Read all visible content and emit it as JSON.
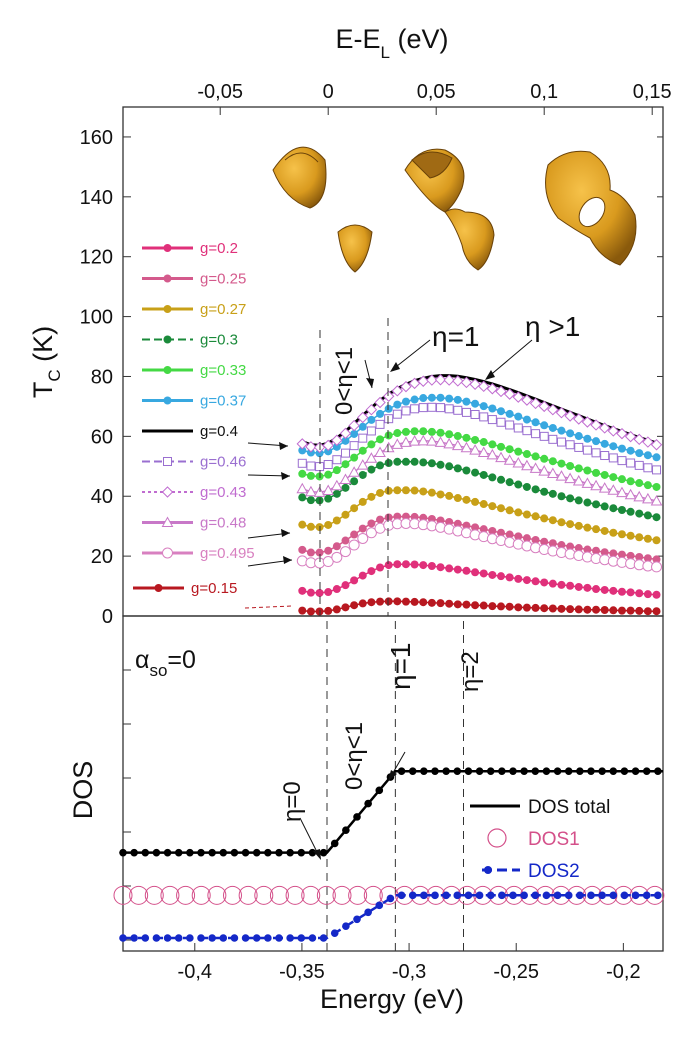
{
  "chart_data": [
    {
      "type": "line",
      "panel": "top",
      "title": "",
      "top_xlabel": "E-E",
      "top_xlabel_sub": "L",
      "top_xlabel_unit": " (eV)",
      "top_xlim": [
        -0.095,
        0.155
      ],
      "top_xticks": [
        -0.05,
        0,
        0.05,
        0.1,
        0.15
      ],
      "top_xtick_labels": [
        "-0,05",
        "0",
        "0,05",
        "0,1",
        "0,15"
      ],
      "ylabel": "T",
      "ylabel_sub": "C",
      "ylabel_unit": " (K)",
      "ylim": [
        0,
        170
      ],
      "yticks": [
        0,
        20,
        40,
        60,
        80,
        100,
        120,
        140,
        160
      ],
      "ytick_labels": [
        "0",
        "20",
        "40",
        "60",
        "80",
        "100",
        "120",
        "140",
        "160"
      ],
      "x": [
        -0.012,
        -0.008,
        -0.004,
        0.0,
        0.004,
        0.008,
        0.012,
        0.016,
        0.02,
        0.024,
        0.028,
        0.032,
        0.036,
        0.04,
        0.044,
        0.048,
        0.052,
        0.056,
        0.06,
        0.064,
        0.068,
        0.072,
        0.076,
        0.08,
        0.084,
        0.088,
        0.092,
        0.096,
        0.1,
        0.104,
        0.108,
        0.112,
        0.116,
        0.12,
        0.124,
        0.128,
        0.132,
        0.136,
        0.14,
        0.144,
        0.148,
        0.152
      ],
      "series": [
        {
          "name": "g=0.2",
          "color": "#e0307a",
          "style": "solid-dot",
          "values": [
            8.4,
            7.8,
            7.7,
            8,
            9,
            10.3,
            11.9,
            13.5,
            15,
            16.2,
            17,
            17.3,
            17.3,
            17.2,
            17,
            16.7,
            16.3,
            15.9,
            15.5,
            15.1,
            14.6,
            14.2,
            13.7,
            13.3,
            12.9,
            12.4,
            12,
            11.6,
            11.2,
            10.8,
            10.4,
            10.1,
            9.7,
            9.4,
            9,
            8.7,
            8.4,
            8.1,
            7.9,
            7.6,
            7.3,
            7.1
          ]
        },
        {
          "name": "g=0.25",
          "color": "#d45a8c",
          "style": "solid-dot",
          "values": [
            22.1,
            21.2,
            21.2,
            21.8,
            23.3,
            25.2,
            27.2,
            29.2,
            30.9,
            32.2,
            32.9,
            33.2,
            33.2,
            33.1,
            32.8,
            32.4,
            31.9,
            31.4,
            30.8,
            30.2,
            29.6,
            29,
            28.4,
            27.8,
            27.2,
            26.6,
            26,
            25.4,
            24.8,
            24.3,
            23.7,
            23.2,
            22.7,
            22.2,
            21.8,
            21.3,
            20.9,
            20.5,
            20.1,
            19.7,
            19.3,
            18.9
          ]
        },
        {
          "name": "g=0.27",
          "color": "#c8a018",
          "style": "solid-dot",
          "values": [
            30.5,
            29.8,
            29.7,
            30.4,
            31.9,
            33.8,
            36,
            38.1,
            39.8,
            41.1,
            41.8,
            42,
            42,
            41.9,
            41.6,
            41.2,
            40.6,
            40.1,
            39.4,
            38.8,
            38.1,
            37.4,
            36.7,
            36,
            35.3,
            34.6,
            33.9,
            33.3,
            32.6,
            32,
            31.3,
            30.7,
            30.1,
            29.5,
            29,
            28.4,
            27.8,
            27.3,
            26.8,
            26.3,
            25.8,
            25.3
          ]
        },
        {
          "name": "g=0.3",
          "color": "#1a8a3a",
          "style": "dashed-dot",
          "values": [
            39.6,
            38.7,
            38.6,
            39.2,
            40.8,
            42.8,
            45,
            47.1,
            48.9,
            50.3,
            51.1,
            51.5,
            51.5,
            51.5,
            51.3,
            51,
            50.5,
            50,
            49.3,
            48.6,
            47.9,
            47.1,
            46.3,
            45.5,
            44.7,
            43.9,
            43.1,
            42.3,
            41.5,
            40.8,
            40,
            39.3,
            38.6,
            37.9,
            37.3,
            36.6,
            36,
            35.4,
            34.8,
            34.2,
            33.6,
            33
          ]
        },
        {
          "name": "g=0.33",
          "color": "#44d944",
          "style": "solid-dot",
          "values": [
            47.5,
            46.8,
            46.6,
            47.2,
            48.7,
            50.7,
            52.9,
            55.2,
            57.3,
            59,
            60.3,
            61.1,
            61.5,
            61.7,
            61.7,
            61.5,
            61.2,
            60.7,
            60.1,
            59.5,
            58.8,
            58.1,
            57.3,
            56.5,
            55.7,
            54.9,
            54.1,
            53.3,
            52.5,
            51.7,
            50.9,
            50.1,
            49.3,
            48.6,
            47.8,
            47.1,
            46.4,
            45.7,
            45,
            44.4,
            43.7,
            43.1
          ]
        },
        {
          "name": "g=0.37",
          "color": "#38a8e0",
          "style": "solid-dot",
          "values": [
            55.3,
            54.6,
            54.4,
            55,
            56.5,
            58.5,
            60.8,
            63.2,
            65.5,
            67.5,
            69.2,
            70.6,
            71.6,
            72.3,
            72.8,
            72.9,
            72.9,
            72.6,
            72.2,
            71.6,
            70.9,
            70.1,
            69.3,
            68.4,
            67.5,
            66.6,
            65.6,
            64.7,
            63.7,
            62.8,
            61.9,
            61,
            60.1,
            59.2,
            58.4,
            57.5,
            56.7,
            55.9,
            55.2,
            54.4,
            53.7,
            53
          ]
        },
        {
          "name": "g=0.4",
          "color": "#000000",
          "style": "solid",
          "values": [
            58.2,
            57.2,
            57,
            57.7,
            59.4,
            61.7,
            64.3,
            67,
            69.6,
            72,
            74.1,
            75.9,
            77.4,
            78.6,
            79.4,
            80,
            80.3,
            80.3,
            80.1,
            79.6,
            79,
            78.3,
            77.5,
            76.6,
            75.6,
            74.6,
            73.5,
            72.4,
            71.3,
            70.2,
            69.1,
            68,
            66.9,
            65.8,
            64.7,
            63.6,
            62.6,
            61.6,
            60.6,
            59.6,
            58.7,
            57.8
          ]
        },
        {
          "name": "g=0.46",
          "color": "#9a6fd0",
          "style": "dashed-square",
          "values": [
            51,
            50.1,
            49.9,
            50.6,
            52.2,
            54.4,
            56.9,
            59.4,
            61.8,
            64,
            65.9,
            67.4,
            68.5,
            69.2,
            69.6,
            69.7,
            69.6,
            69.2,
            68.7,
            68,
            67.3,
            66.5,
            65.6,
            64.7,
            63.8,
            62.8,
            61.9,
            60.9,
            60,
            59,
            58.1,
            57.2,
            56.3,
            55.4,
            54.5,
            53.6,
            52.8,
            51.9,
            51.1,
            50.3,
            49.5,
            48.8
          ]
        },
        {
          "name": "g=0.43",
          "color": "#c06cd0",
          "style": "dotted-diamond",
          "values": [
            57.5,
            56.5,
            56.3,
            57,
            58.7,
            61,
            63.6,
            66.3,
            68.9,
            71.3,
            73.4,
            75.2,
            76.6,
            77.7,
            78.4,
            78.8,
            78.9,
            78.8,
            78.5,
            78,
            77.4,
            76.7,
            75.9,
            75,
            74.1,
            73.1,
            72.1,
            71,
            70,
            68.9,
            67.9,
            66.8,
            65.8,
            64.8,
            63.8,
            62.8,
            61.8,
            60.9,
            59.9,
            59,
            58.1,
            57.2
          ]
        },
        {
          "name": "g=0.48",
          "color": "#c878c8",
          "style": "solid-triangle",
          "values": [
            42.5,
            41.5,
            41.3,
            41.9,
            43.5,
            45.6,
            48,
            50.4,
            52.7,
            54.6,
            56.2,
            57.3,
            58,
            58.4,
            58.5,
            58.4,
            58,
            57.5,
            56.9,
            56.2,
            55.4,
            54.6,
            53.8,
            52.9,
            52,
            51.1,
            50.2,
            49.3,
            48.4,
            47.6,
            46.7,
            45.9,
            45.1,
            44.3,
            43.5,
            42.7,
            42,
            41.2,
            40.5,
            39.8,
            39.1,
            38.4
          ]
        },
        {
          "name": "g=0.495",
          "color": "#d880c0",
          "style": "solid-circle",
          "values": [
            18.4,
            17.8,
            17.7,
            18.2,
            19.6,
            21.5,
            23.7,
            25.9,
            27.8,
            29.3,
            30.3,
            30.8,
            30.9,
            30.8,
            30.5,
            30.1,
            29.6,
            29,
            28.4,
            27.8,
            27.1,
            26.5,
            25.8,
            25.2,
            24.6,
            24,
            23.4,
            22.8,
            22.2,
            21.7,
            21.2,
            20.7,
            20.2,
            19.7,
            19.2,
            18.8,
            18.3,
            17.9,
            17.5,
            17.1,
            16.7,
            16.4
          ]
        },
        {
          "name": "g=0.15",
          "color": "#b81820",
          "style": "solid-dot",
          "values": [
            1.8,
            1.5,
            1.5,
            1.7,
            2.2,
            2.9,
            3.6,
            4.2,
            4.6,
            4.8,
            4.9,
            4.9,
            4.8,
            4.7,
            4.6,
            4.4,
            4.3,
            4.1,
            3.9,
            3.8,
            3.6,
            3.5,
            3.3,
            3.2,
            3.1,
            2.9,
            2.8,
            2.7,
            2.6,
            2.5,
            2.4,
            2.3,
            2.2,
            2.1,
            2.1,
            2,
            1.9,
            1.8,
            1.8,
            1.7,
            1.6,
            1.6
          ]
        }
      ],
      "annotations": [
        "0<η<1",
        "η=1",
        "η >1"
      ]
    },
    {
      "type": "line",
      "panel": "bottom",
      "xlabel": "Energy (eV)",
      "ylabel": "DOS",
      "xlim": [
        -0.4335,
        -0.1815
      ],
      "xticks": [
        -0.4,
        -0.35,
        -0.3,
        -0.25,
        -0.2
      ],
      "xtick_labels": [
        "-0,4",
        "-0,35",
        "-0,3",
        "-0,25",
        "-0,2"
      ],
      "ylim": [
        0,
        1
      ],
      "band_edges": [
        -0.3383,
        -0.3064,
        -0.2746
      ],
      "alpha_label": "α",
      "alpha_sub": "so",
      "alpha_value": "=0",
      "series": [
        {
          "name": "DOS total",
          "color": "#000000",
          "marker": "dot",
          "points": [
            [
              -0.4335,
              0.44
            ],
            [
              -0.3383,
              0.44
            ],
            [
              -0.3064,
              0.86
            ],
            [
              -0.1815,
              0.86
            ]
          ]
        },
        {
          "name": "DOS1",
          "color": "#d4508a",
          "marker": "open-circle",
          "points": [
            [
              -0.4335,
              0.22
            ],
            [
              -0.1815,
              0.22
            ]
          ]
        },
        {
          "name": "DOS2",
          "color": "#1428c8",
          "marker": "dot",
          "dashed": true,
          "points": [
            [
              -0.4335,
              0.0
            ],
            [
              -0.3383,
              0.0
            ],
            [
              -0.3064,
              0.22
            ],
            [
              -0.1815,
              0.22
            ]
          ]
        }
      ],
      "annotations": [
        "η=0",
        "0<η<1",
        "η=1",
        "η=2"
      ]
    }
  ]
}
